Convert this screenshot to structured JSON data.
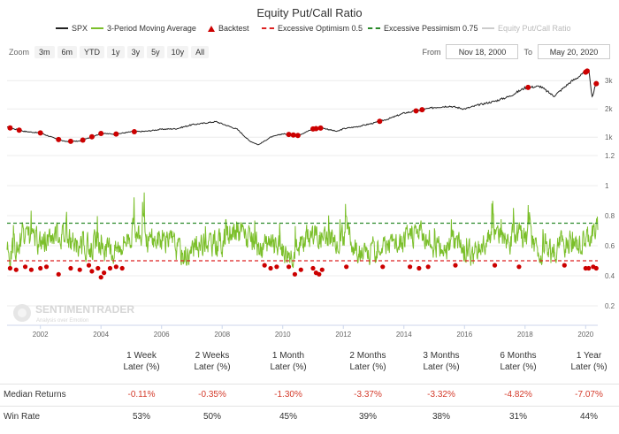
{
  "title": "Equity Put/Call Ratio",
  "legend": [
    {
      "label": "SPX",
      "color": "#222222",
      "style": "line"
    },
    {
      "label": "3-Period Moving Average",
      "color": "#7bbf2a",
      "style": "line"
    },
    {
      "label": "Backtest",
      "color": "#cc0000",
      "style": "triangle"
    },
    {
      "label": "Excessive Optimism 0.5",
      "color": "#dd2222",
      "style": "dash"
    },
    {
      "label": "Excessive Pessimism 0.75",
      "color": "#2a8a2a",
      "style": "dash"
    },
    {
      "label": "Equity Put/Call Ratio",
      "color": "#bbbbbb",
      "style": "line",
      "hidden": true
    }
  ],
  "toolbar": {
    "zoom_label": "Zoom",
    "zoom_buttons": [
      "3m",
      "6m",
      "YTD",
      "1y",
      "3y",
      "5y",
      "10y",
      "All"
    ],
    "from_label": "From",
    "from_value": "Nov 18, 2000",
    "to_label": "To",
    "to_value": "May 20, 2020"
  },
  "watermark": {
    "name": "SENTIMENTRADER",
    "tagline": "Analysis over Emotion"
  },
  "chart_data": [
    {
      "type": "line",
      "name_panel": "SPX",
      "x": [
        2000.9,
        2001.5,
        2002.0,
        2002.5,
        2002.8,
        2003.3,
        2004.0,
        2004.5,
        2005.0,
        2005.5,
        2006.0,
        2006.5,
        2007.0,
        2007.8,
        2008.5,
        2008.9,
        2009.2,
        2009.6,
        2010.0,
        2010.5,
        2011.0,
        2011.3,
        2011.8,
        2012.0,
        2012.5,
        2013.0,
        2013.5,
        2014.0,
        2014.5,
        2015.0,
        2015.5,
        2016.0,
        2016.5,
        2017.0,
        2017.5,
        2018.0,
        2018.5,
        2018.95,
        2019.5,
        2020.0,
        2020.1,
        2020.22,
        2020.3,
        2020.38
      ],
      "values": [
        1350,
        1200,
        1150,
        950,
        850,
        860,
        1130,
        1110,
        1190,
        1210,
        1280,
        1300,
        1440,
        1550,
        1280,
        870,
        730,
        1000,
        1120,
        1060,
        1290,
        1330,
        1200,
        1300,
        1380,
        1500,
        1650,
        1850,
        1950,
        2050,
        2100,
        2000,
        2150,
        2270,
        2450,
        2750,
        2800,
        2450,
        2950,
        3300,
        3380,
        2350,
        2800,
        2950
      ],
      "backtest_x": [
        2001.0,
        2001.3,
        2002.0,
        2002.6,
        2003.0,
        2003.4,
        2003.7,
        2004.0,
        2004.5,
        2005.1,
        2010.2,
        2010.35,
        2010.5,
        2011.0,
        2011.1,
        2011.25,
        2013.2,
        2014.4,
        2014.6,
        2018.1,
        2020.0,
        2020.05,
        2020.35
      ],
      "y_ticks": [
        "1k",
        "2k",
        "3k"
      ],
      "ylim": [
        600,
        3600
      ]
    },
    {
      "type": "line",
      "name": "3-Period Moving Average",
      "x_ticks": [
        "2002",
        "2004",
        "2006",
        "2008",
        "2010",
        "2012",
        "2014",
        "2016",
        "2018",
        "2020"
      ],
      "xlim": [
        2000.9,
        2020.4
      ],
      "y_ticks": [
        "0.2",
        "0.4",
        "0.6",
        "0.8",
        "1",
        "1.2"
      ],
      "ylim": [
        0.1,
        1.2
      ],
      "thresholds": [
        {
          "label": "Excessive Optimism 0.5",
          "value": 0.5
        },
        {
          "label": "Excessive Pessimism 0.75",
          "value": 0.75
        }
      ],
      "backtest_points": [
        [
          2001.0,
          0.45
        ],
        [
          2001.2,
          0.44
        ],
        [
          2001.5,
          0.46
        ],
        [
          2001.7,
          0.44
        ],
        [
          2002.0,
          0.45
        ],
        [
          2002.2,
          0.46
        ],
        [
          2002.6,
          0.41
        ],
        [
          2003.0,
          0.45
        ],
        [
          2003.3,
          0.44
        ],
        [
          2003.6,
          0.47
        ],
        [
          2003.7,
          0.43
        ],
        [
          2003.9,
          0.45
        ],
        [
          2004.0,
          0.39
        ],
        [
          2004.1,
          0.42
        ],
        [
          2004.3,
          0.45
        ],
        [
          2004.5,
          0.46
        ],
        [
          2004.7,
          0.45
        ],
        [
          2009.4,
          0.47
        ],
        [
          2009.6,
          0.45
        ],
        [
          2009.8,
          0.46
        ],
        [
          2010.2,
          0.46
        ],
        [
          2010.4,
          0.41
        ],
        [
          2010.6,
          0.44
        ],
        [
          2011.0,
          0.45
        ],
        [
          2011.1,
          0.42
        ],
        [
          2011.2,
          0.41
        ],
        [
          2011.3,
          0.44
        ],
        [
          2012.1,
          0.46
        ],
        [
          2013.3,
          0.46
        ],
        [
          2014.2,
          0.46
        ],
        [
          2014.5,
          0.45
        ],
        [
          2014.8,
          0.46
        ],
        [
          2015.7,
          0.47
        ],
        [
          2017.0,
          0.47
        ],
        [
          2017.8,
          0.46
        ],
        [
          2019.3,
          0.47
        ],
        [
          2020.0,
          0.45
        ],
        [
          2020.1,
          0.45
        ],
        [
          2020.25,
          0.46
        ],
        [
          2020.35,
          0.45
        ]
      ]
    },
    {
      "type": "table",
      "columns": [
        "1 Week Later (%)",
        "2 Weeks Later (%)",
        "1 Month Later (%)",
        "2 Months Later (%)",
        "3 Months Later (%)",
        "6 Months Later (%)",
        "1 Year Later (%)"
      ],
      "rows": [
        {
          "label": "Median Returns",
          "values": [
            "-0.11%",
            "-0.35%",
            "-1.30%",
            "-3.37%",
            "-3.32%",
            "-4.82%",
            "-7.07%"
          ]
        },
        {
          "label": "Win Rate",
          "values": [
            "53%",
            "50%",
            "45%",
            "39%",
            "38%",
            "31%",
            "44%"
          ]
        }
      ]
    }
  ],
  "table_headers": [
    {
      "line1": "1 Week",
      "line2": "Later (%)"
    },
    {
      "line1": "2 Weeks",
      "line2": "Later (%)"
    },
    {
      "line1": "1 Month",
      "line2": "Later (%)"
    },
    {
      "line1": "2 Months",
      "line2": "Later (%)"
    },
    {
      "line1": "3 Months",
      "line2": "Later (%)"
    },
    {
      "line1": "6 Months",
      "line2": "Later (%)"
    },
    {
      "line1": "1 Year",
      "line2": "Later (%)"
    }
  ],
  "colors": {
    "spx": "#222222",
    "ma": "#7bbf2a",
    "backtest": "#cc0000",
    "optimism": "#dd2222",
    "pessimism": "#2a8a2a",
    "red_text": "#d43a2a"
  }
}
